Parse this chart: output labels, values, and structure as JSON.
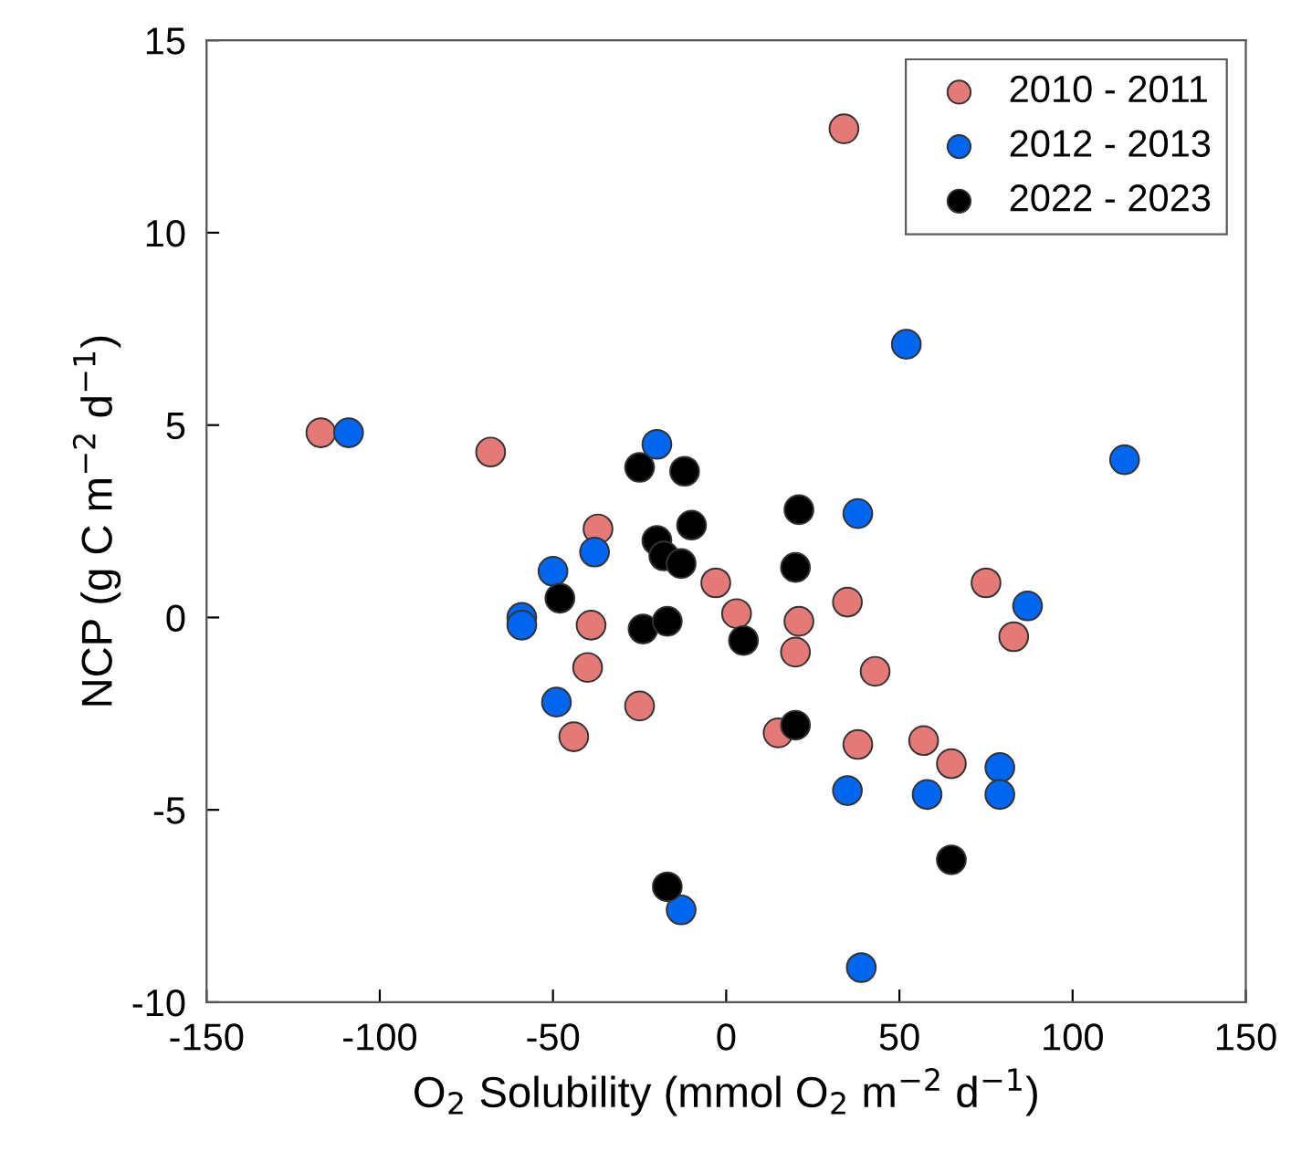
{
  "chart_data": {
    "type": "scatter",
    "xlabel": "O$_{2}$ Solubility (mmol O$_{2}$ m$^{−2}$ d$^{−1}$)",
    "ylabel": "NCP (g C m$^{−2}$ d$^{−1}$)",
    "xlim": [
      -150,
      150
    ],
    "xticks": [
      -150,
      -100,
      -50,
      0,
      50,
      100,
      150
    ],
    "ylim": [
      -10,
      15
    ],
    "yticks": [
      -10,
      -5,
      0,
      5,
      10,
      15
    ],
    "grid": false,
    "legend": "top right",
    "marker": "circle",
    "series": [
      {
        "name": "2010 - 2011",
        "color": "#e47a78",
        "x": [
          -117,
          -68,
          -37,
          -39,
          -3,
          3,
          -40,
          -25,
          -44,
          34,
          21,
          20,
          35,
          43,
          75,
          83,
          15,
          38,
          57,
          65
        ],
        "values": [
          4.8,
          4.3,
          2.3,
          -0.2,
          0.9,
          0.1,
          -1.3,
          -2.3,
          -3.1,
          12.7,
          -0.1,
          -0.9,
          0.4,
          -1.4,
          0.9,
          -0.5,
          -3.0,
          -3.3,
          -3.2,
          -3.8
        ]
      },
      {
        "name": "2012 - 2013",
        "color": "#0066ee",
        "x": [
          -109,
          -20,
          -38,
          -50,
          -59,
          -59,
          -49,
          -13,
          52,
          115,
          38,
          87,
          79,
          79,
          35,
          58,
          39
        ],
        "values": [
          4.8,
          4.5,
          1.7,
          1.2,
          0.0,
          -0.2,
          -2.2,
          -7.6,
          7.1,
          4.1,
          2.7,
          0.3,
          -3.9,
          -4.6,
          -4.5,
          -4.6,
          -9.1
        ]
      },
      {
        "name": "2022 - 2023",
        "color": "#000000",
        "x": [
          -25,
          -12,
          -10,
          -20,
          -18,
          -13,
          -48,
          -24,
          -17,
          5,
          21,
          20,
          20,
          -17,
          65
        ],
        "values": [
          3.9,
          3.8,
          2.4,
          2.0,
          1.6,
          1.4,
          0.5,
          -0.3,
          -0.1,
          -0.6,
          2.8,
          1.3,
          -2.8,
          -7.0,
          -6.3
        ]
      }
    ]
  }
}
